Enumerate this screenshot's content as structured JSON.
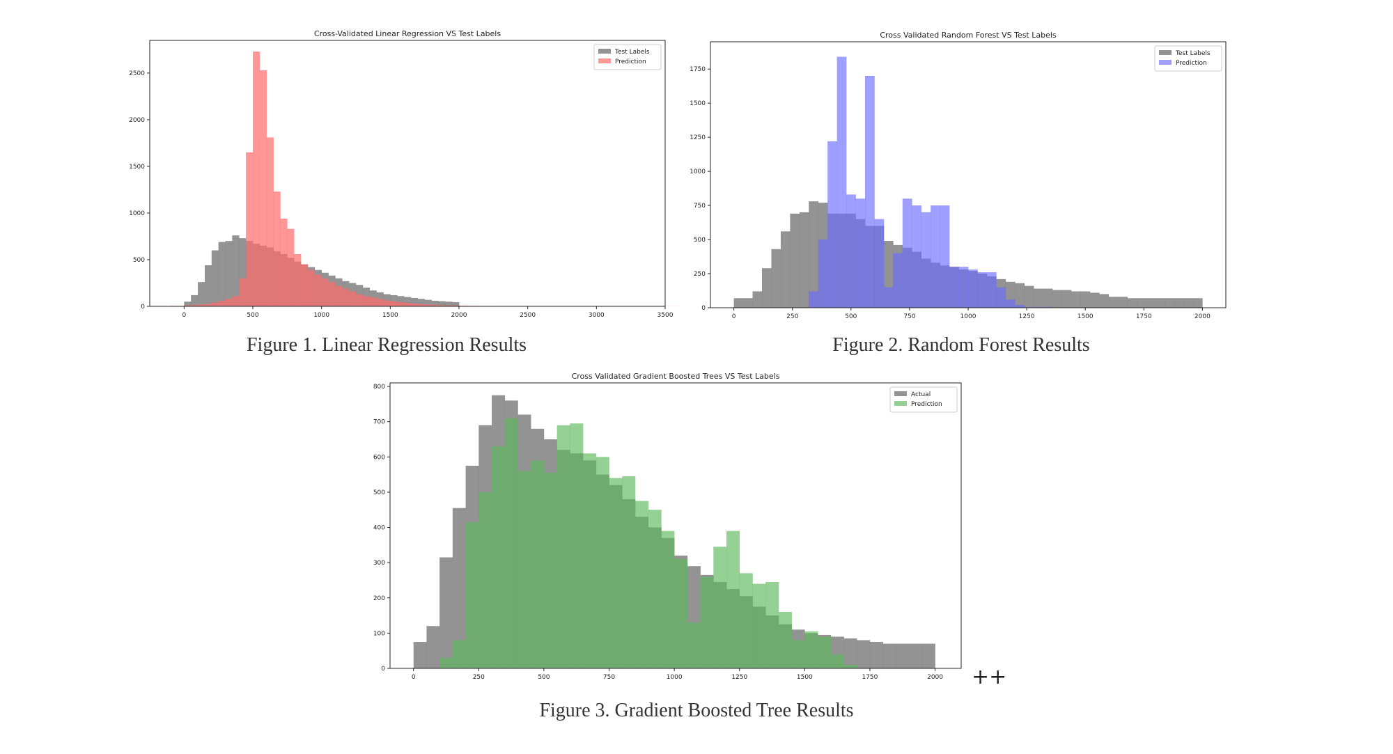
{
  "figure1": {
    "caption": "Figure 1. Linear Regression Results"
  },
  "figure2": {
    "caption": "Figure 2. Random Forest Results"
  },
  "figure3": {
    "caption": "Figure 3. Gradient Boosted Tree Results",
    "trailing_mark": "++"
  },
  "chart_data": [
    {
      "type": "histogram",
      "title": "Cross-Validated Linear Regression VS Test Labels",
      "xlabel": "",
      "ylabel": "",
      "xlim": [
        -250,
        3500
      ],
      "ylim": [
        0,
        2850
      ],
      "xticks": [
        0,
        500,
        1000,
        1500,
        2000,
        2500,
        3000,
        3500
      ],
      "yticks": [
        0,
        500,
        1000,
        1500,
        2000,
        2500
      ],
      "legend_position": "top-right",
      "bin_width": 50,
      "series": [
        {
          "name": "Test Labels",
          "color": "#808080",
          "opacity": 0.85,
          "start": 0,
          "values": [
            50,
            120,
            260,
            440,
            600,
            690,
            700,
            760,
            730,
            700,
            670,
            650,
            630,
            590,
            560,
            520,
            480,
            450,
            420,
            390,
            360,
            330,
            300,
            270,
            250,
            230,
            200,
            170,
            150,
            130,
            120,
            110,
            100,
            90,
            80,
            70,
            60,
            55,
            50,
            45
          ]
        },
        {
          "name": "Prediction",
          "color": "#ff6b6b",
          "opacity": 0.7,
          "start": -100,
          "values": [
            5,
            5,
            10,
            15,
            20,
            25,
            40,
            60,
            80,
            110,
            300,
            1650,
            2730,
            2530,
            1810,
            1230,
            940,
            830,
            560,
            450,
            390,
            340,
            300,
            260,
            220,
            190,
            160,
            130,
            110,
            95,
            80,
            65,
            55,
            45,
            38,
            30,
            25,
            20,
            15,
            12,
            10,
            8,
            6,
            5,
            5,
            4,
            4,
            3,
            3,
            3,
            2,
            2,
            2,
            2,
            2,
            2,
            1,
            1,
            1,
            1,
            1,
            1,
            1,
            1,
            1,
            1,
            1,
            1,
            1,
            1,
            1,
            1,
            1,
            1,
            1
          ]
        }
      ]
    },
    {
      "type": "histogram",
      "title": "Cross Validated Random Forest VS Test Labels",
      "xlabel": "",
      "ylabel": "",
      "xlim": [
        -100,
        2100
      ],
      "ylim": [
        0,
        1950
      ],
      "xticks": [
        0,
        250,
        500,
        750,
        1000,
        1250,
        1500,
        1750,
        2000
      ],
      "yticks": [
        0,
        250,
        500,
        750,
        1000,
        1250,
        1500,
        1750
      ],
      "legend_position": "top-right",
      "bin_width": 40,
      "series": [
        {
          "name": "Test Labels",
          "color": "#808080",
          "opacity": 0.85,
          "start": 0,
          "values": [
            70,
            70,
            120,
            290,
            430,
            560,
            690,
            700,
            780,
            770,
            690,
            690,
            690,
            650,
            600,
            600,
            490,
            460,
            440,
            410,
            360,
            330,
            310,
            300,
            280,
            270,
            250,
            230,
            210,
            190,
            180,
            160,
            140,
            140,
            130,
            130,
            120,
            120,
            110,
            100,
            80,
            80,
            70,
            70,
            70,
            70,
            70,
            70,
            70,
            70
          ]
        },
        {
          "name": "Prediction",
          "color": "#6b6bff",
          "opacity": 0.65,
          "start": 320,
          "values": [
            120,
            500,
            1220,
            1840,
            830,
            800,
            1700,
            650,
            150,
            400,
            800,
            750,
            700,
            750,
            750,
            300,
            300,
            280,
            260,
            260,
            150,
            60,
            20,
            5,
            5,
            5
          ]
        }
      ]
    },
    {
      "type": "histogram",
      "title": "Cross Validated Gradient Boosted Trees VS Test Labels",
      "xlabel": "",
      "ylabel": "",
      "xlim": [
        -90,
        2100
      ],
      "ylim": [
        0,
        810
      ],
      "xticks": [
        0,
        250,
        500,
        750,
        1000,
        1250,
        1500,
        1750,
        2000
      ],
      "yticks": [
        0,
        100,
        200,
        300,
        400,
        500,
        600,
        700,
        800
      ],
      "legend_position": "top-right",
      "bin_width": 50,
      "series": [
        {
          "name": "Actual",
          "color": "#808080",
          "opacity": 0.85,
          "start": 0,
          "values": [
            75,
            120,
            315,
            455,
            575,
            690,
            775,
            760,
            720,
            680,
            650,
            620,
            610,
            590,
            550,
            520,
            480,
            430,
            400,
            370,
            320,
            290,
            265,
            245,
            225,
            205,
            175,
            150,
            125,
            110,
            100,
            95,
            90,
            85,
            80,
            75,
            70,
            70,
            70,
            70
          ]
        },
        {
          "name": "Prediction",
          "color": "#5cb85c",
          "opacity": 0.65,
          "start": 100,
          "values": [
            30,
            80,
            415,
            500,
            630,
            710,
            560,
            590,
            555,
            690,
            695,
            610,
            600,
            540,
            545,
            475,
            450,
            390,
            310,
            130,
            260,
            345,
            390,
            270,
            240,
            245,
            160,
            80,
            105,
            90,
            40,
            10
          ]
        }
      ]
    }
  ]
}
